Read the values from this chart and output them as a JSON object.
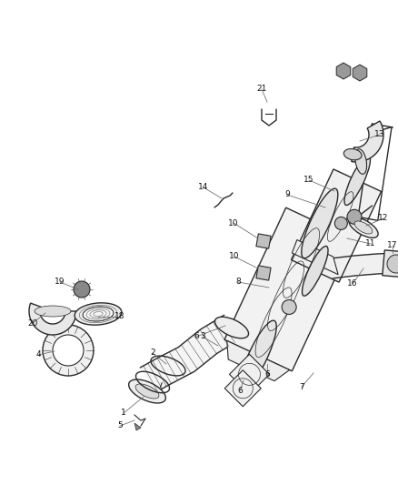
{
  "bg_color": "#ffffff",
  "lc": "#2a2a2a",
  "fig_w": 4.38,
  "fig_h": 5.33,
  "dpi": 100,
  "lw": 0.8,
  "label_fs": 6.5,
  "label_color": "#111111"
}
